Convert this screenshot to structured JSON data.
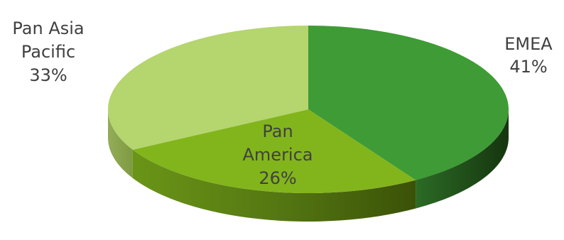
{
  "chart_data": {
    "type": "pie",
    "variant": "3d",
    "categories": [
      "EMEA",
      "Pan America",
      "Pan Asia Pacific"
    ],
    "values": [
      41,
      26,
      33
    ],
    "unit": "%",
    "colors": [
      "#3f9b35",
      "#82b51c",
      "#b5d56e"
    ],
    "labels": [
      {
        "lines": [
          "EMEA",
          "41%"
        ]
      },
      {
        "lines": [
          "Pan",
          "America",
          "26%"
        ]
      },
      {
        "lines": [
          "Pan Asia",
          "Pacific",
          "33%"
        ]
      }
    ],
    "title": "",
    "legend": "none"
  }
}
